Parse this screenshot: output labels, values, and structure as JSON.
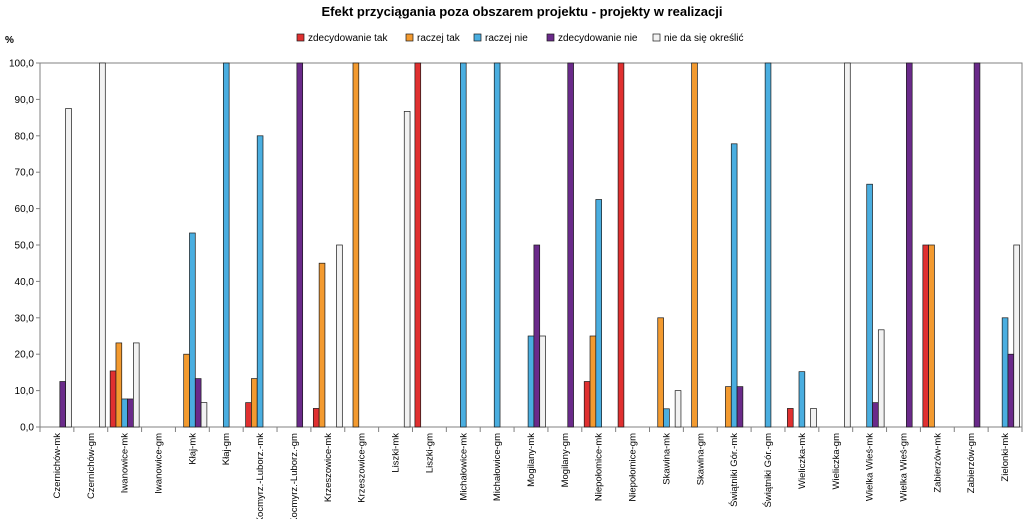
{
  "chart_data": {
    "type": "bar",
    "title": "Efekt przyciągania poza obszarem projektu - projekty w realizacji",
    "ylabel": "%",
    "xlabel": "",
    "ylim": [
      0,
      100
    ],
    "ytick_step": 10,
    "ytick_labels": [
      "0,0",
      "10,0",
      "20,0",
      "30,0",
      "40,0",
      "50,0",
      "60,0",
      "70,0",
      "80,0",
      "90,0",
      "100,0"
    ],
    "grid": false,
    "legend_position": "top",
    "categories": [
      "Czernichów-mk",
      "Czernichów-gm",
      "Iwanowice-mk",
      "Iwanowice-gm",
      "Kłaj-mk",
      "Kłaj-gm",
      "Kocmyrz.-Luborz.-mk",
      "Kocmyrz.-Luborz.-gm",
      "Krzeszowice-mk",
      "Krzeszowice-gm",
      "Liszki-mk",
      "Liszki-gm",
      "Michałowice-mk",
      "Michałowice-gm",
      "Mogilany-mk",
      "Mogilany-gm",
      "Niepołomice-mk",
      "Niepołomice-gm",
      "Skawina-mk",
      "Skawina-gm",
      "Świątniki Gór.-mk",
      "Świątniki Gór.-gm",
      "Wieliczka-mk",
      "Wieliczka-gm",
      "Wielka Wieś-mk",
      "Wielka Wieś-gm",
      "Zabierzów-mk",
      "Zabierzów-gm",
      "Zielonki-mk"
    ],
    "series": [
      {
        "name": "zdecydowanie tak",
        "color": "#e03030",
        "values": [
          0,
          0,
          15.4,
          0,
          0,
          0,
          6.7,
          0,
          5.1,
          0,
          0,
          100,
          0,
          0,
          0,
          0,
          12.5,
          100,
          0,
          0,
          0,
          0,
          5.1,
          0,
          0,
          0,
          50,
          0,
          0
        ]
      },
      {
        "name": "raczej tak",
        "color": "#f39a2f",
        "values": [
          0,
          0,
          23.1,
          0,
          20,
          0,
          13.3,
          0,
          45,
          100,
          0,
          0,
          0,
          0,
          0,
          0,
          25,
          0,
          30,
          100,
          11.1,
          0,
          0,
          0,
          0,
          0,
          50,
          0,
          0
        ]
      },
      {
        "name": "raczej nie",
        "color": "#4aaee0",
        "values": [
          0,
          0,
          7.7,
          0,
          53.3,
          100,
          80,
          0,
          0,
          0,
          0,
          0,
          100,
          100,
          25,
          0,
          62.5,
          0,
          5,
          0,
          77.8,
          100,
          15.2,
          0,
          66.7,
          0,
          0,
          0,
          30
        ]
      },
      {
        "name": "zdecydowanie nie",
        "color": "#6a2a8a",
        "values": [
          12.5,
          0,
          7.7,
          0,
          13.3,
          0,
          0,
          100,
          0,
          0,
          0,
          0,
          0,
          0,
          50,
          100,
          0,
          0,
          0,
          0,
          11.1,
          0,
          0,
          0,
          6.7,
          100,
          0,
          100,
          20
        ]
      },
      {
        "name": "nie da się określić",
        "color": "#f2f2f2",
        "values": [
          87.5,
          100,
          23.1,
          0,
          6.7,
          0,
          0,
          0,
          50,
          0,
          86.7,
          0,
          0,
          0,
          25,
          0,
          0,
          0,
          10,
          0,
          0,
          0,
          5.1,
          100,
          26.7,
          0,
          0,
          0,
          50
        ]
      }
    ]
  }
}
